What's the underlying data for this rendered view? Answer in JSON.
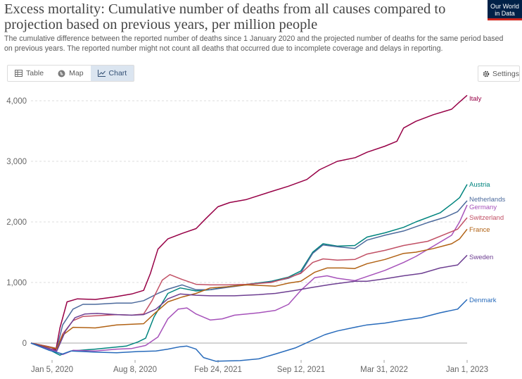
{
  "header": {
    "title": "Excess mortality: Cumulative number of deaths from all causes compared to projection based on previous years, per million people",
    "subtitle": "The cumulative difference between the reported number of deaths since 1 January 2020 and the projected number of deaths for the same period based on previous years. The reported number might not count all deaths that occurred due to incomplete coverage and delays in reporting.",
    "logo_line1": "Our World",
    "logo_line2": "in Data"
  },
  "toolbar": {
    "tabs": [
      {
        "label": "Table",
        "icon": "table-icon"
      },
      {
        "label": "Map",
        "icon": "globe-icon"
      },
      {
        "label": "Chart",
        "icon": "line-chart-icon",
        "active": true
      }
    ],
    "settings_label": "Settings",
    "accent": "#dbe5f0"
  },
  "chart_data": {
    "type": "line",
    "x_tick_labels": [
      "Jan 5, 2020",
      "Aug 8, 2020",
      "Feb 24, 2021",
      "Sep 12, 2021",
      "Mar 31, 2022",
      "Jan 1, 2023"
    ],
    "x_range": [
      "2020-01-05",
      "2023-01-08"
    ],
    "ylim": [
      -300,
      4150
    ],
    "y_ticks": [
      0,
      1000,
      2000,
      3000,
      4000
    ],
    "y_tick_labels": [
      "0",
      "1,000",
      "2,000",
      "3,000",
      "4,000"
    ],
    "grid": "horizontal dashed",
    "legend": "line-end labels",
    "series": [
      {
        "name": "Italy",
        "color": "#970046",
        "points": [
          [
            "2020-01-05",
            0
          ],
          [
            "2020-02-20",
            -60
          ],
          [
            "2020-03-08",
            -110
          ],
          [
            "2020-03-18",
            250
          ],
          [
            "2020-04-05",
            680
          ],
          [
            "2020-05-01",
            730
          ],
          [
            "2020-06-15",
            720
          ],
          [
            "2020-08-01",
            760
          ],
          [
            "2020-09-15",
            810
          ],
          [
            "2020-10-15",
            870
          ],
          [
            "2020-11-01",
            1150
          ],
          [
            "2020-11-20",
            1550
          ],
          [
            "2020-12-15",
            1720
          ],
          [
            "2021-01-20",
            1810
          ],
          [
            "2021-02-24",
            1890
          ],
          [
            "2021-03-20",
            2050
          ],
          [
            "2021-04-20",
            2250
          ],
          [
            "2021-05-20",
            2320
          ],
          [
            "2021-07-01",
            2370
          ],
          [
            "2021-09-01",
            2500
          ],
          [
            "2021-10-15",
            2590
          ],
          [
            "2021-11-30",
            2700
          ],
          [
            "2022-01-01",
            2860
          ],
          [
            "2022-02-15",
            3000
          ],
          [
            "2022-04-01",
            3060
          ],
          [
            "2022-05-01",
            3150
          ],
          [
            "2022-06-15",
            3250
          ],
          [
            "2022-07-15",
            3330
          ],
          [
            "2022-08-01",
            3550
          ],
          [
            "2022-09-01",
            3660
          ],
          [
            "2022-10-15",
            3770
          ],
          [
            "2022-11-30",
            3860
          ],
          [
            "2022-12-20",
            3980
          ],
          [
            "2023-01-08",
            4090
          ]
        ]
      },
      {
        "name": "Austria",
        "color": "#00847e",
        "points": [
          [
            "2020-01-05",
            0
          ],
          [
            "2020-02-20",
            -110
          ],
          [
            "2020-03-18",
            -200
          ],
          [
            "2020-04-15",
            -130
          ],
          [
            "2020-06-15",
            -100
          ],
          [
            "2020-09-01",
            -50
          ],
          [
            "2020-10-01",
            20
          ],
          [
            "2020-10-20",
            80
          ],
          [
            "2020-11-10",
            430
          ],
          [
            "2020-12-15",
            820
          ],
          [
            "2021-01-15",
            910
          ],
          [
            "2021-02-24",
            860
          ],
          [
            "2021-04-01",
            880
          ],
          [
            "2021-05-15",
            930
          ],
          [
            "2021-07-01",
            970
          ],
          [
            "2021-09-01",
            1020
          ],
          [
            "2021-10-15",
            1090
          ],
          [
            "2021-11-15",
            1190
          ],
          [
            "2021-12-15",
            1500
          ],
          [
            "2022-01-10",
            1640
          ],
          [
            "2022-02-15",
            1600
          ],
          [
            "2022-03-31",
            1610
          ],
          [
            "2022-05-01",
            1750
          ],
          [
            "2022-06-15",
            1820
          ],
          [
            "2022-08-01",
            1910
          ],
          [
            "2022-09-01",
            2000
          ],
          [
            "2022-11-01",
            2150
          ],
          [
            "2022-12-01",
            2300
          ],
          [
            "2022-12-20",
            2400
          ],
          [
            "2023-01-08",
            2620
          ]
        ]
      },
      {
        "name": "Netherlands",
        "color": "#4c6a9c",
        "points": [
          [
            "2020-01-05",
            0
          ],
          [
            "2020-02-20",
            -60
          ],
          [
            "2020-03-10",
            -90
          ],
          [
            "2020-03-25",
            300
          ],
          [
            "2020-04-20",
            560
          ],
          [
            "2020-05-15",
            640
          ],
          [
            "2020-06-15",
            640
          ],
          [
            "2020-08-08",
            660
          ],
          [
            "2020-09-15",
            660
          ],
          [
            "2020-10-15",
            700
          ],
          [
            "2020-11-20",
            820
          ],
          [
            "2020-12-15",
            890
          ],
          [
            "2021-01-20",
            960
          ],
          [
            "2021-02-24",
            880
          ],
          [
            "2021-04-01",
            880
          ],
          [
            "2021-05-15",
            920
          ],
          [
            "2021-07-01",
            960
          ],
          [
            "2021-09-01",
            1010
          ],
          [
            "2021-10-15",
            1070
          ],
          [
            "2021-11-15",
            1160
          ],
          [
            "2021-12-15",
            1480
          ],
          [
            "2022-01-10",
            1620
          ],
          [
            "2022-02-15",
            1590
          ],
          [
            "2022-03-31",
            1560
          ],
          [
            "2022-05-01",
            1700
          ],
          [
            "2022-06-15",
            1780
          ],
          [
            "2022-08-01",
            1850
          ],
          [
            "2022-10-01",
            1990
          ],
          [
            "2022-11-15",
            2080
          ],
          [
            "2022-12-15",
            2170
          ],
          [
            "2023-01-08",
            2350
          ]
        ]
      },
      {
        "name": "Germany",
        "color": "#a652ba",
        "points": [
          [
            "2020-01-05",
            0
          ],
          [
            "2020-02-20",
            -100
          ],
          [
            "2020-03-25",
            -190
          ],
          [
            "2020-04-20",
            -120
          ],
          [
            "2020-06-15",
            -130
          ],
          [
            "2020-08-08",
            -100
          ],
          [
            "2020-09-15",
            -90
          ],
          [
            "2020-10-20",
            -40
          ],
          [
            "2020-11-20",
            100
          ],
          [
            "2020-12-15",
            400
          ],
          [
            "2021-01-10",
            560
          ],
          [
            "2021-02-01",
            580
          ],
          [
            "2021-02-24",
            480
          ],
          [
            "2021-04-01",
            380
          ],
          [
            "2021-05-01",
            400
          ],
          [
            "2021-06-01",
            460
          ],
          [
            "2021-07-01",
            480
          ],
          [
            "2021-08-01",
            500
          ],
          [
            "2021-09-12",
            540
          ],
          [
            "2021-10-15",
            640
          ],
          [
            "2021-11-15",
            870
          ],
          [
            "2021-12-20",
            1080
          ],
          [
            "2022-01-20",
            1110
          ],
          [
            "2022-02-15",
            1070
          ],
          [
            "2022-03-31",
            1030
          ],
          [
            "2022-05-01",
            1100
          ],
          [
            "2022-06-15",
            1200
          ],
          [
            "2022-08-01",
            1330
          ],
          [
            "2022-09-01",
            1430
          ],
          [
            "2022-10-15",
            1600
          ],
          [
            "2022-11-30",
            1780
          ],
          [
            "2022-12-20",
            2000
          ],
          [
            "2023-01-08",
            2280
          ]
        ]
      },
      {
        "name": "Switzerland",
        "color": "#c15065",
        "points": [
          [
            "2020-01-05",
            0
          ],
          [
            "2020-02-20",
            -60
          ],
          [
            "2020-03-10",
            -90
          ],
          [
            "2020-03-25",
            150
          ],
          [
            "2020-04-20",
            370
          ],
          [
            "2020-05-15",
            440
          ],
          [
            "2020-06-15",
            450
          ],
          [
            "2020-08-08",
            470
          ],
          [
            "2020-09-15",
            460
          ],
          [
            "2020-10-15",
            480
          ],
          [
            "2020-11-05",
            700
          ],
          [
            "2020-12-01",
            1040
          ],
          [
            "2020-12-20",
            1130
          ],
          [
            "2021-01-20",
            1050
          ],
          [
            "2021-02-24",
            970
          ],
          [
            "2021-04-01",
            960
          ],
          [
            "2021-05-15",
            960
          ],
          [
            "2021-07-01",
            970
          ],
          [
            "2021-09-01",
            1000
          ],
          [
            "2021-10-15",
            1080
          ],
          [
            "2021-11-15",
            1150
          ],
          [
            "2021-12-15",
            1330
          ],
          [
            "2022-01-10",
            1390
          ],
          [
            "2022-02-15",
            1370
          ],
          [
            "2022-03-31",
            1380
          ],
          [
            "2022-05-01",
            1470
          ],
          [
            "2022-06-15",
            1530
          ],
          [
            "2022-08-01",
            1610
          ],
          [
            "2022-10-01",
            1680
          ],
          [
            "2022-11-15",
            1800
          ],
          [
            "2022-12-15",
            1880
          ],
          [
            "2023-01-08",
            2070
          ]
        ]
      },
      {
        "name": "France",
        "color": "#b16214",
        "points": [
          [
            "2020-01-05",
            0
          ],
          [
            "2020-02-20",
            -70
          ],
          [
            "2020-03-10",
            -90
          ],
          [
            "2020-03-25",
            130
          ],
          [
            "2020-04-20",
            260
          ],
          [
            "2020-06-15",
            250
          ],
          [
            "2020-08-08",
            300
          ],
          [
            "2020-10-15",
            320
          ],
          [
            "2020-11-10",
            480
          ],
          [
            "2020-12-15",
            680
          ],
          [
            "2021-01-20",
            760
          ],
          [
            "2021-02-24",
            820
          ],
          [
            "2021-04-01",
            910
          ],
          [
            "2021-05-15",
            930
          ],
          [
            "2021-07-01",
            960
          ],
          [
            "2021-09-12",
            940
          ],
          [
            "2021-10-15",
            990
          ],
          [
            "2021-11-15",
            1020
          ],
          [
            "2021-12-20",
            1170
          ],
          [
            "2022-01-20",
            1240
          ],
          [
            "2022-03-01",
            1240
          ],
          [
            "2022-03-31",
            1230
          ],
          [
            "2022-05-01",
            1310
          ],
          [
            "2022-06-15",
            1380
          ],
          [
            "2022-08-01",
            1480
          ],
          [
            "2022-09-01",
            1500
          ],
          [
            "2022-10-15",
            1560
          ],
          [
            "2022-11-30",
            1640
          ],
          [
            "2022-12-20",
            1720
          ],
          [
            "2023-01-08",
            1880
          ]
        ]
      },
      {
        "name": "Sweden",
        "color": "#6d3e91",
        "points": [
          [
            "2020-01-05",
            0
          ],
          [
            "2020-02-20",
            -90
          ],
          [
            "2020-03-10",
            -130
          ],
          [
            "2020-04-01",
            200
          ],
          [
            "2020-04-25",
            420
          ],
          [
            "2020-05-20",
            480
          ],
          [
            "2020-06-20",
            490
          ],
          [
            "2020-08-08",
            470
          ],
          [
            "2020-09-15",
            460
          ],
          [
            "2020-10-15",
            470
          ],
          [
            "2020-11-15",
            560
          ],
          [
            "2020-12-15",
            730
          ],
          [
            "2021-01-15",
            810
          ],
          [
            "2021-02-24",
            790
          ],
          [
            "2021-04-01",
            780
          ],
          [
            "2021-06-01",
            780
          ],
          [
            "2021-08-01",
            800
          ],
          [
            "2021-09-12",
            820
          ],
          [
            "2021-11-01",
            870
          ],
          [
            "2021-12-15",
            920
          ],
          [
            "2022-01-31",
            970
          ],
          [
            "2022-03-31",
            1020
          ],
          [
            "2022-05-01",
            1020
          ],
          [
            "2022-06-15",
            1060
          ],
          [
            "2022-08-01",
            1110
          ],
          [
            "2022-09-15",
            1150
          ],
          [
            "2022-11-01",
            1240
          ],
          [
            "2022-12-15",
            1290
          ],
          [
            "2023-01-08",
            1450
          ]
        ]
      },
      {
        "name": "Denmark",
        "color": "#286bbb",
        "points": [
          [
            "2020-01-05",
            0
          ],
          [
            "2020-02-20",
            -120
          ],
          [
            "2020-03-25",
            -180
          ],
          [
            "2020-04-15",
            -130
          ],
          [
            "2020-06-15",
            -150
          ],
          [
            "2020-08-08",
            -160
          ],
          [
            "2020-10-01",
            -140
          ],
          [
            "2020-11-15",
            -130
          ],
          [
            "2020-12-15",
            -100
          ],
          [
            "2021-01-15",
            -60
          ],
          [
            "2021-02-01",
            -50
          ],
          [
            "2021-02-24",
            -100
          ],
          [
            "2021-03-15",
            -240
          ],
          [
            "2021-04-15",
            -300
          ],
          [
            "2021-06-15",
            -290
          ],
          [
            "2021-08-01",
            -260
          ],
          [
            "2021-09-12",
            -180
          ],
          [
            "2021-11-01",
            -80
          ],
          [
            "2021-12-15",
            50
          ],
          [
            "2022-01-15",
            140
          ],
          [
            "2022-02-15",
            200
          ],
          [
            "2022-03-31",
            260
          ],
          [
            "2022-05-01",
            300
          ],
          [
            "2022-06-15",
            330
          ],
          [
            "2022-08-01",
            380
          ],
          [
            "2022-09-15",
            420
          ],
          [
            "2022-11-01",
            500
          ],
          [
            "2022-12-15",
            560
          ],
          [
            "2023-01-08",
            720
          ]
        ]
      }
    ]
  }
}
